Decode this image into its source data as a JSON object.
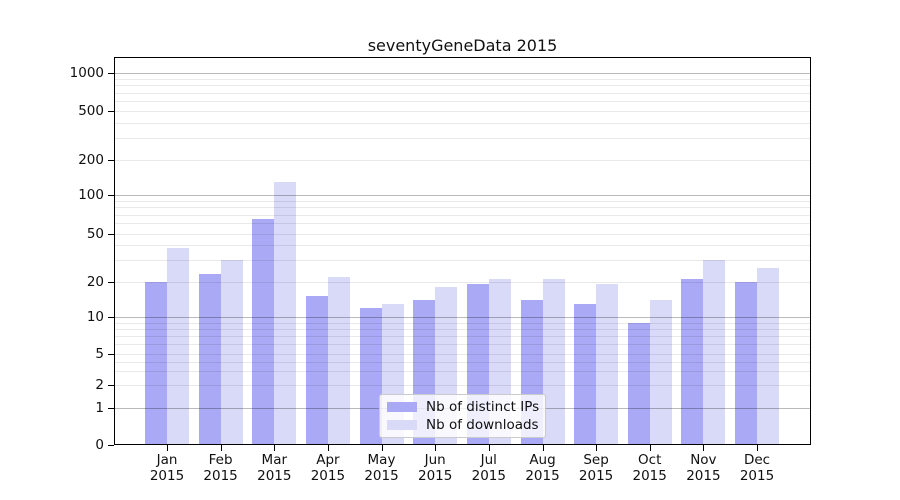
{
  "title": "seventyGeneData 2015",
  "chart_data": {
    "type": "bar",
    "title": "seventyGeneData 2015",
    "months": [
      "Jan",
      "Feb",
      "Mar",
      "Apr",
      "May",
      "Jun",
      "Jul",
      "Aug",
      "Sep",
      "Oct",
      "Nov",
      "Dec"
    ],
    "year": "2015",
    "categories": [
      "Jan 2015",
      "Feb 2015",
      "Mar 2015",
      "Apr 2015",
      "May 2015",
      "Jun 2015",
      "Jul 2015",
      "Aug 2015",
      "Sep 2015",
      "Oct 2015",
      "Nov 2015",
      "Dec 2015"
    ],
    "series": [
      {
        "name": "Nb of distinct IPs",
        "color": "#a9a9f5",
        "values": [
          20,
          23,
          65,
          15,
          12,
          14,
          19,
          14,
          13,
          9,
          21,
          20
        ]
      },
      {
        "name": "Nb of downloads",
        "color": "#d9d9f8",
        "values": [
          38,
          30,
          130,
          22,
          13,
          18,
          21,
          21,
          19,
          14,
          30,
          26
        ]
      }
    ],
    "xlabel": "",
    "ylabel": "",
    "yscale": "log-like (0,1,2,5,10,20,50,100,200,500,1000)",
    "y_ticks": [
      0,
      1,
      2,
      5,
      10,
      20,
      50,
      100,
      200,
      500,
      1000
    ],
    "ylim": [
      0,
      1350
    ],
    "grid": "major dark at powers of 10, light minors between",
    "legend_position": "lower center inside plot",
    "colors": {
      "background": "#ffffff",
      "bar_distinct_ips": "#a9a9f5",
      "bar_downloads": "#d9d9f8",
      "legend_border": "#cbcbcb",
      "axis": "#000000"
    }
  }
}
